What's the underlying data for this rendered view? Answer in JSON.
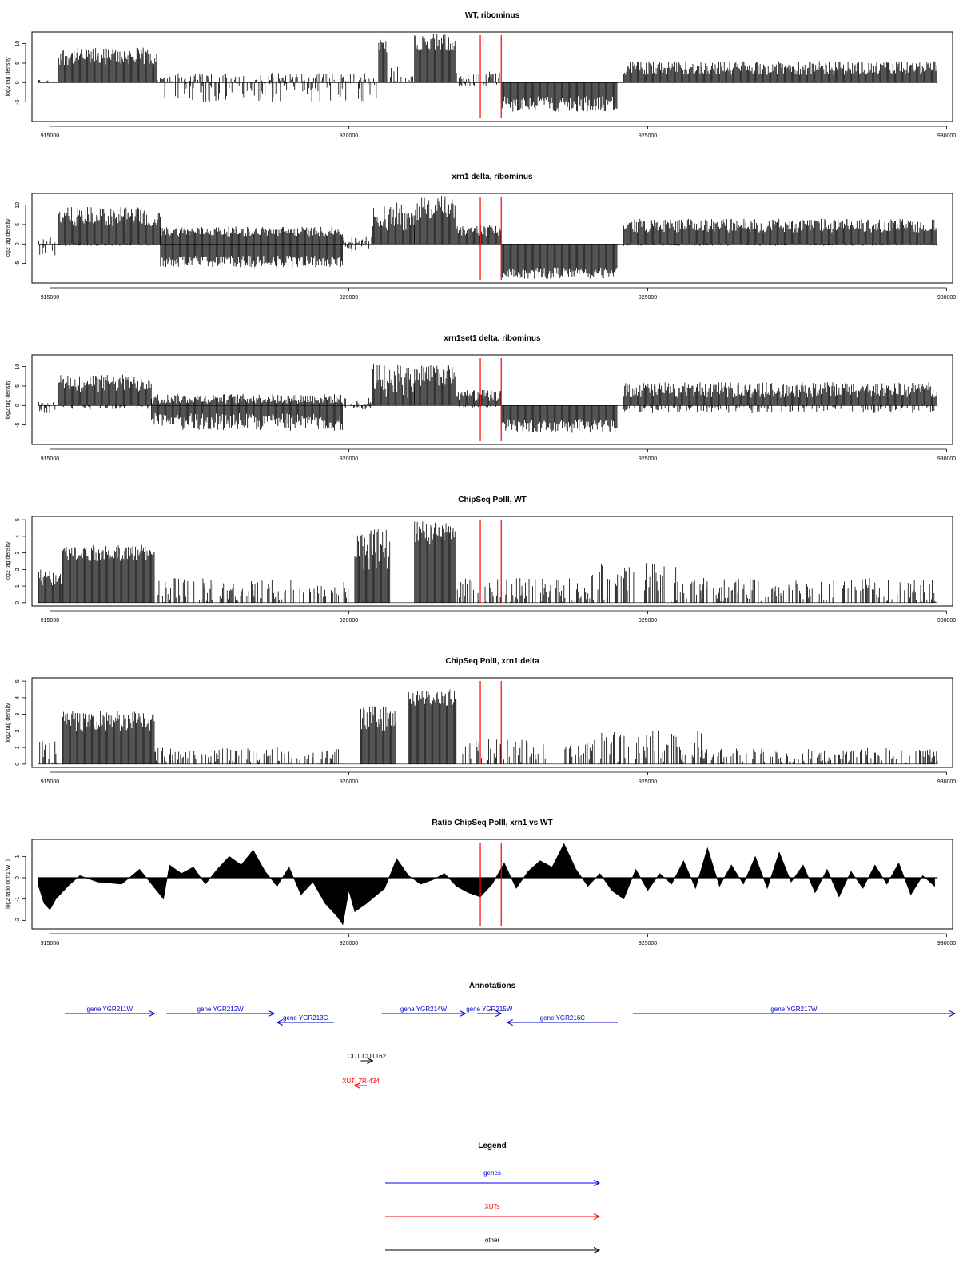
{
  "chart_data": [
    {
      "type": "bar",
      "title": "WT, ribominus",
      "ylabel": "log2 tag density",
      "xlim": [
        914700,
        930100
      ],
      "ylim": [
        -10,
        13
      ],
      "yticks": [
        -5,
        0,
        5,
        10
      ],
      "xticks": [
        915000,
        920000,
        925000,
        930000
      ],
      "xticklabels": [
        "915000",
        "920000",
        "925000",
        "930000"
      ],
      "ytick_labels": [
        "-5",
        "0",
        "5",
        "10"
      ],
      "markers": [
        922200,
        922550
      ],
      "segments": [
        {
          "x": [
            914800,
            915000
          ],
          "pos": [
            0,
            1
          ],
          "neg": [
            0,
            0
          ]
        },
        {
          "x": [
            915150,
            916800
          ],
          "pos": [
            4.5,
            9.0
          ],
          "neg": [
            0,
            0
          ]
        },
        {
          "x": [
            916800,
            920500
          ],
          "pos": [
            0,
            2.5
          ],
          "neg": [
            0,
            5
          ]
        },
        {
          "x": [
            920500,
            920650
          ],
          "pos": [
            6,
            12
          ],
          "neg": [
            0,
            0
          ]
        },
        {
          "x": [
            920650,
            921100
          ],
          "pos": [
            0,
            4
          ],
          "neg": [
            0,
            0
          ]
        },
        {
          "x": [
            921100,
            921800
          ],
          "pos": [
            8,
            12.5
          ],
          "neg": [
            0,
            0
          ]
        },
        {
          "x": [
            921800,
            922550
          ],
          "pos": [
            0,
            3
          ],
          "neg": [
            0,
            1
          ]
        },
        {
          "x": [
            922550,
            924500
          ],
          "pos": [
            0,
            0
          ],
          "neg": [
            3.5,
            7.5
          ]
        },
        {
          "x": [
            924600,
            929850
          ],
          "pos": [
            2,
            5.5
          ],
          "neg": [
            0,
            0
          ]
        }
      ]
    },
    {
      "type": "bar",
      "title": "xrn1 delta, ribominus",
      "ylabel": "log2 tag density",
      "xlim": [
        914700,
        930100
      ],
      "ylim": [
        -10,
        13
      ],
      "yticks": [
        -5,
        0,
        5,
        10
      ],
      "xticks": [
        915000,
        920000,
        925000,
        930000
      ],
      "xticklabels": [
        "915000",
        "920000",
        "925000",
        "930000"
      ],
      "ytick_labels": [
        "-5",
        "0",
        "5",
        "10"
      ],
      "markers": [
        922200,
        922550
      ],
      "segments": [
        {
          "x": [
            914800,
            915100
          ],
          "pos": [
            0,
            2
          ],
          "neg": [
            0,
            3
          ]
        },
        {
          "x": [
            915150,
            916850
          ],
          "pos": [
            4.5,
            9.5
          ],
          "neg": [
            0,
            0.5
          ]
        },
        {
          "x": [
            916850,
            919900
          ],
          "pos": [
            2,
            4.5
          ],
          "neg": [
            3,
            6
          ]
        },
        {
          "x": [
            919900,
            920400
          ],
          "pos": [
            0,
            2
          ],
          "neg": [
            0,
            2
          ]
        },
        {
          "x": [
            920400,
            921100
          ],
          "pos": [
            3,
            11
          ],
          "neg": [
            0,
            0
          ]
        },
        {
          "x": [
            921100,
            921800
          ],
          "pos": [
            6,
            12.5
          ],
          "neg": [
            0,
            0
          ]
        },
        {
          "x": [
            921800,
            922550
          ],
          "pos": [
            2,
            5
          ],
          "neg": [
            0,
            0
          ]
        },
        {
          "x": [
            922550,
            924500
          ],
          "pos": [
            0,
            0
          ],
          "neg": [
            6,
            9
          ]
        },
        {
          "x": [
            924600,
            929850
          ],
          "pos": [
            3,
            6.5
          ],
          "neg": [
            0,
            0.5
          ]
        }
      ]
    },
    {
      "type": "bar",
      "title": "xrn1set1 delta, ribominus",
      "ylabel": "log2 tag density",
      "xlim": [
        914700,
        930100
      ],
      "ylim": [
        -10,
        13
      ],
      "yticks": [
        -5,
        0,
        5,
        10
      ],
      "xticks": [
        915000,
        920000,
        925000,
        930000
      ],
      "xticklabels": [
        "915000",
        "920000",
        "925000",
        "930000"
      ],
      "ytick_labels": [
        "-5",
        "0",
        "5",
        "10"
      ],
      "markers": [
        922200,
        922550
      ],
      "segments": [
        {
          "x": [
            914800,
            915100
          ],
          "pos": [
            0,
            1
          ],
          "neg": [
            0,
            2
          ]
        },
        {
          "x": [
            915150,
            916700
          ],
          "pos": [
            3.5,
            8
          ],
          "neg": [
            0,
            1
          ]
        },
        {
          "x": [
            916700,
            919900
          ],
          "pos": [
            0.5,
            3
          ],
          "neg": [
            2,
            6.5
          ]
        },
        {
          "x": [
            919900,
            920400
          ],
          "pos": [
            0,
            2
          ],
          "neg": [
            0,
            1
          ]
        },
        {
          "x": [
            920400,
            921100
          ],
          "pos": [
            2,
            11
          ],
          "neg": [
            0,
            0
          ]
        },
        {
          "x": [
            921100,
            921800
          ],
          "pos": [
            5,
            10.5
          ],
          "neg": [
            0,
            0
          ]
        },
        {
          "x": [
            921800,
            922550
          ],
          "pos": [
            1,
            4
          ],
          "neg": [
            0,
            0.5
          ]
        },
        {
          "x": [
            922550,
            924500
          ],
          "pos": [
            0,
            0
          ],
          "neg": [
            3.5,
            7
          ]
        },
        {
          "x": [
            924600,
            929850
          ],
          "pos": [
            2,
            6
          ],
          "neg": [
            0,
            2
          ]
        }
      ]
    },
    {
      "type": "bar",
      "title": "ChipSeq PolII, WT",
      "ylabel": "log2 tag density",
      "xlim": [
        914700,
        930100
      ],
      "ylim": [
        -0.2,
        5.2
      ],
      "yticks": [
        0,
        1,
        2,
        3,
        4,
        5
      ],
      "xticks": [
        915000,
        920000,
        925000,
        930000
      ],
      "xticklabels": [
        "915000",
        "920000",
        "925000",
        "930000"
      ],
      "ytick_labels": [
        "0",
        "1",
        "2",
        "3",
        "4",
        "5"
      ],
      "markers": [
        922200,
        922550
      ],
      "segments": [
        {
          "x": [
            914800,
            915200
          ],
          "pos": [
            1,
            2
          ],
          "neg": [
            0,
            0
          ]
        },
        {
          "x": [
            915200,
            916750
          ],
          "pos": [
            2.5,
            3.5
          ],
          "neg": [
            0,
            0
          ]
        },
        {
          "x": [
            916750,
            920000
          ],
          "pos": [
            0,
            1.5
          ],
          "neg": [
            0,
            0
          ]
        },
        {
          "x": [
            920100,
            920700
          ],
          "pos": [
            2,
            4.5
          ],
          "neg": [
            0,
            0
          ]
        },
        {
          "x": [
            921100,
            921800
          ],
          "pos": [
            3.5,
            4.9
          ],
          "neg": [
            0,
            0
          ]
        },
        {
          "x": [
            921800,
            924000
          ],
          "pos": [
            0,
            1.5
          ],
          "neg": [
            0,
            0
          ]
        },
        {
          "x": [
            924000,
            925500
          ],
          "pos": [
            0,
            2.5
          ],
          "neg": [
            0,
            0
          ]
        },
        {
          "x": [
            925500,
            929850
          ],
          "pos": [
            0,
            1.5
          ],
          "neg": [
            0,
            0
          ]
        }
      ]
    },
    {
      "type": "bar",
      "title": "ChipSeq PolII, xrn1 delta",
      "ylabel": "log2 tag density",
      "xlim": [
        914700,
        930100
      ],
      "ylim": [
        -0.2,
        5.2
      ],
      "yticks": [
        0,
        1,
        2,
        3,
        4,
        5
      ],
      "xticks": [
        915000,
        920000,
        925000,
        930000
      ],
      "xticklabels": [
        "915000",
        "920000",
        "925000",
        "930000"
      ],
      "ytick_labels": [
        "0",
        "1",
        "2",
        "3",
        "4",
        "5"
      ],
      "markers": [
        922200,
        922550
      ],
      "segments": [
        {
          "x": [
            914800,
            915200
          ],
          "pos": [
            0,
            1.5
          ],
          "neg": [
            0,
            0
          ]
        },
        {
          "x": [
            915200,
            916750
          ],
          "pos": [
            2,
            3.2
          ],
          "neg": [
            0,
            0
          ]
        },
        {
          "x": [
            916750,
            919900
          ],
          "pos": [
            0,
            1
          ],
          "neg": [
            0,
            0
          ]
        },
        {
          "x": [
            920200,
            920800
          ],
          "pos": [
            2,
            3.5
          ],
          "neg": [
            0,
            0
          ]
        },
        {
          "x": [
            921000,
            921800
          ],
          "pos": [
            3.5,
            4.5
          ],
          "neg": [
            0,
            0
          ]
        },
        {
          "x": [
            921800,
            923300
          ],
          "pos": [
            0,
            1.5
          ],
          "neg": [
            0,
            0
          ]
        },
        {
          "x": [
            923600,
            925900
          ],
          "pos": [
            0,
            2
          ],
          "neg": [
            0,
            0
          ]
        },
        {
          "x": [
            925900,
            929850
          ],
          "pos": [
            0,
            1
          ],
          "neg": [
            0,
            0
          ]
        }
      ]
    },
    {
      "type": "area",
      "title": "Ratio ChipSeq PolII, xrn1 vs WT",
      "ylabel": "log2 ratio (xrn1/WT)",
      "xlim": [
        914700,
        930100
      ],
      "ylim": [
        -2.4,
        1.8
      ],
      "yticks": [
        -2,
        -1,
        0,
        1
      ],
      "xticks": [
        915000,
        920000,
        925000,
        930000
      ],
      "xticklabels": [
        "915000",
        "920000",
        "925000",
        "930000"
      ],
      "ytick_labels": [
        "-2",
        "-1",
        "0",
        "1"
      ],
      "markers": [
        922200,
        922550
      ],
      "x": [
        914800,
        914900,
        915000,
        915100,
        915300,
        915500,
        915800,
        916200,
        916500,
        916900,
        917000,
        917200,
        917400,
        917600,
        917800,
        918000,
        918200,
        918400,
        918600,
        918800,
        919000,
        919200,
        919400,
        919600,
        919800,
        919900,
        920000,
        920100,
        920300,
        920600,
        920800,
        921000,
        921200,
        921400,
        921600,
        921800,
        922000,
        922200,
        922400,
        922600,
        922800,
        923000,
        923200,
        923400,
        923600,
        923800,
        924000,
        924200,
        924400,
        924600,
        924800,
        925000,
        925200,
        925400,
        925600,
        925800,
        926000,
        926200,
        926400,
        926600,
        926800,
        927000,
        927200,
        927400,
        927600,
        927800,
        928000,
        928200,
        928400,
        928600,
        928800,
        929000,
        929200,
        929400,
        929600,
        929800
      ],
      "y": [
        -0.3,
        -1.2,
        -1.5,
        -1.0,
        -0.4,
        0.1,
        -0.2,
        -0.3,
        0.4,
        -1.0,
        0.6,
        0.2,
        0.5,
        -0.3,
        0.4,
        1.0,
        0.6,
        1.3,
        0.3,
        -0.4,
        0.5,
        -0.8,
        -0.2,
        -1.2,
        -1.8,
        -2.2,
        -0.6,
        -1.6,
        -1.2,
        -0.5,
        0.9,
        0.1,
        -0.3,
        -0.1,
        0.2,
        -0.4,
        -0.7,
        -0.9,
        -0.3,
        0.7,
        -0.5,
        0.3,
        0.8,
        0.5,
        1.6,
        0.4,
        -0.4,
        0.2,
        -0.6,
        -1.0,
        0.4,
        -0.6,
        0.2,
        -0.3,
        0.8,
        -0.5,
        1.4,
        -0.4,
        0.6,
        -0.3,
        1.0,
        -0.5,
        1.2,
        -0.2,
        0.6,
        -0.7,
        0.4,
        -0.9,
        0.3,
        -0.5,
        0.6,
        -0.3,
        0.7,
        -0.8,
        0.1,
        -0.4
      ]
    }
  ],
  "annotations": {
    "title": "Annotations",
    "xlim": [
      914700,
      930100
    ],
    "features": [
      {
        "label": "gene YGR211W",
        "start": 915250,
        "end": 916750,
        "dir": "+",
        "row": 0,
        "color": "#0000cc"
      },
      {
        "label": "gene YGR212W",
        "start": 916950,
        "end": 918750,
        "dir": "+",
        "row": 0,
        "color": "#0000cc"
      },
      {
        "label": "gene YGR213C",
        "start": 918800,
        "end": 919750,
        "dir": "-",
        "row": 1,
        "color": "#0000cc"
      },
      {
        "label": "gene YGR214W",
        "start": 920550,
        "end": 921950,
        "dir": "+",
        "row": 0,
        "color": "#0000cc"
      },
      {
        "label": "gene YGR215W",
        "start": 922150,
        "end": 922550,
        "dir": "+",
        "row": 0,
        "color": "#0000cc"
      },
      {
        "label": "gene YGR216C",
        "start": 922650,
        "end": 924500,
        "dir": "-",
        "row": 1,
        "color": "#0000cc"
      },
      {
        "label": "gene YGR217W",
        "start": 924750,
        "end": 930200,
        "dir": "+",
        "row": 0,
        "color": "#0000cc"
      },
      {
        "label": "CUT CUT162",
        "start": 920200,
        "end": 920400,
        "dir": "+",
        "row": 2,
        "color": "#000000"
      },
      {
        "label": "XUT_7R-434",
        "start": 920100,
        "end": 920300,
        "dir": "-",
        "row": 3,
        "color": "#ff0000"
      }
    ]
  },
  "legend": {
    "title": "Legend",
    "items": [
      {
        "label": "genes",
        "color": "#0000ff"
      },
      {
        "label": "XUTs",
        "color": "#ff0000"
      },
      {
        "label": "other",
        "color": "#000000"
      }
    ]
  }
}
